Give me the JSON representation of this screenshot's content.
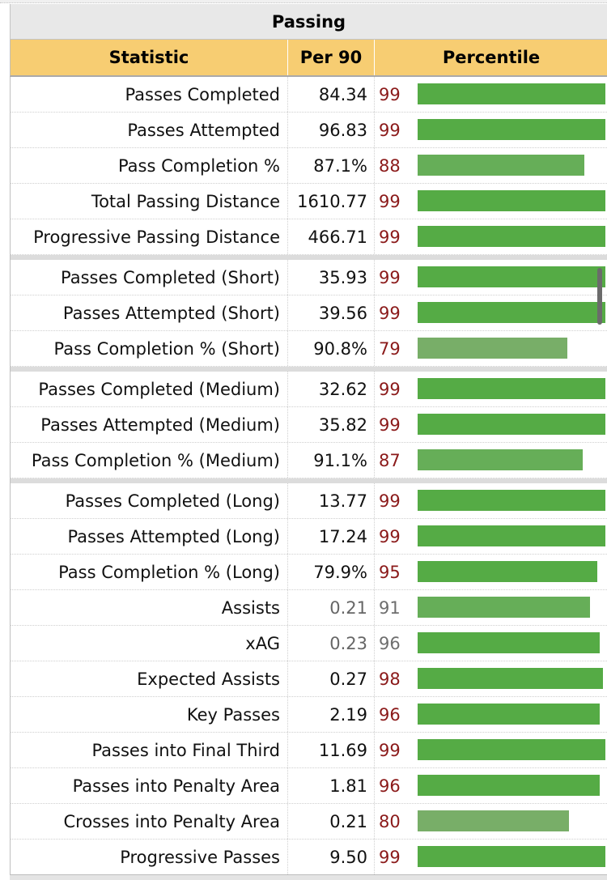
{
  "table": {
    "title": "Passing",
    "headers": {
      "statistic": "Statistic",
      "per90": "Per 90",
      "percentile": "Percentile"
    },
    "groups": [
      {
        "rows": [
          {
            "stat": "Passes Completed",
            "per90": "84.34",
            "percentile": 99
          },
          {
            "stat": "Passes Attempted",
            "per90": "96.83",
            "percentile": 99
          },
          {
            "stat": "Pass Completion %",
            "per90": "87.1%",
            "percentile": 88
          },
          {
            "stat": "Total Passing Distance",
            "per90": "1610.77",
            "percentile": 99
          },
          {
            "stat": "Progressive Passing Distance",
            "per90": "466.71",
            "percentile": 99
          }
        ]
      },
      {
        "rows": [
          {
            "stat": "Passes Completed (Short)",
            "per90": "35.93",
            "percentile": 99
          },
          {
            "stat": "Passes Attempted (Short)",
            "per90": "39.56",
            "percentile": 99
          },
          {
            "stat": "Pass Completion % (Short)",
            "per90": "90.8%",
            "percentile": 79
          }
        ]
      },
      {
        "rows": [
          {
            "stat": "Passes Completed (Medium)",
            "per90": "32.62",
            "percentile": 99
          },
          {
            "stat": "Passes Attempted (Medium)",
            "per90": "35.82",
            "percentile": 99
          },
          {
            "stat": "Pass Completion % (Medium)",
            "per90": "91.1%",
            "percentile": 87
          }
        ]
      },
      {
        "rows": [
          {
            "stat": "Passes Completed (Long)",
            "per90": "13.77",
            "percentile": 99
          },
          {
            "stat": "Passes Attempted (Long)",
            "per90": "17.24",
            "percentile": 99
          },
          {
            "stat": "Pass Completion % (Long)",
            "per90": "79.9%",
            "percentile": 95
          },
          {
            "stat": "Assists",
            "per90": "0.21",
            "percentile": 91,
            "muted": true
          },
          {
            "stat": "xAG",
            "per90": "0.23",
            "percentile": 96,
            "muted": true
          },
          {
            "stat": "Expected Assists",
            "per90": "0.27",
            "percentile": 98
          },
          {
            "stat": "Key Passes",
            "per90": "2.19",
            "percentile": 96
          },
          {
            "stat": "Passes into Final Third",
            "per90": "11.69",
            "percentile": 99
          },
          {
            "stat": "Passes into Penalty Area",
            "per90": "1.81",
            "percentile": 96
          },
          {
            "stat": "Crosses into Penalty Area",
            "per90": "0.21",
            "percentile": 80
          },
          {
            "stat": "Progressive Passes",
            "per90": "9.50",
            "percentile": 99
          }
        ]
      }
    ]
  },
  "colors": {
    "header_bg": "#f7cd72",
    "bar_high": "#55ab45",
    "bar_mid": "#66ae58",
    "bar_low": "#78ae68",
    "percentile_text": "#8b1a1a",
    "percentile_text_muted": "#6e6e6e"
  }
}
